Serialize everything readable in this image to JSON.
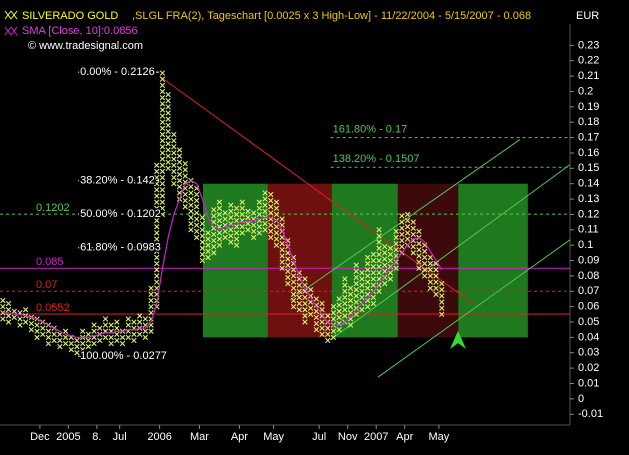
{
  "chart_data": {
    "type": "pointfigure",
    "title": "SILVERADO GOLD",
    "subtitle": ",SLGL FRA(2), Tageschart [0.0025 x 3 High-Low] - 11/22/2004 - 5/15/2007 - 0.068",
    "indicator_label": "SMA [Close, 10]:0.0856",
    "copyright": "© www.tradesignal.com",
    "y_axis_label": "EUR",
    "xlim": [
      0,
      100
    ],
    "ylim": [
      -0.017,
      0.24
    ],
    "xticks": [
      {
        "value": 7,
        "label": "Dec"
      },
      {
        "value": 12,
        "label": "2005"
      },
      {
        "value": 17,
        "label": "8."
      },
      {
        "value": 21,
        "label": "Jul"
      },
      {
        "value": 28,
        "label": "2006"
      },
      {
        "value": 35,
        "label": "Mar"
      },
      {
        "value": 42,
        "label": "Apr"
      },
      {
        "value": 48,
        "label": "May"
      },
      {
        "value": 56,
        "label": "Jul"
      },
      {
        "value": 61,
        "label": "Nov"
      },
      {
        "value": 66,
        "label": "2007"
      },
      {
        "value": 71,
        "label": "Apr"
      },
      {
        "value": 77,
        "label": "May"
      }
    ],
    "yticks": [
      0.23,
      0.22,
      0.21,
      0.2,
      0.19,
      0.18,
      0.17,
      0.16,
      0.15,
      0.14,
      0.13,
      0.12,
      0.11,
      0.1,
      0.09,
      0.08,
      0.07,
      0.06,
      0.05,
      0.04,
      0.03,
      0.02,
      0.01,
      0,
      -0.01
    ],
    "series": [
      {
        "name": "SILVERADO GOLD",
        "color": "#d8f070",
        "lows": [
          0.052,
          0.05,
          0.053,
          0.048,
          0.05,
          0.045,
          0.04,
          0.042,
          0.036,
          0.038,
          0.034,
          0.036,
          0.032,
          0.03,
          0.032,
          0.034,
          0.036,
          0.038,
          0.04,
          0.036,
          0.038,
          0.036,
          0.04,
          0.038,
          0.042,
          0.04,
          0.044,
          0.06,
          0.12,
          0.15,
          0.14,
          0.13,
          0.125,
          0.11,
          0.105,
          0.09,
          0.092,
          0.095,
          0.1,
          0.105,
          0.102,
          0.1,
          0.108,
          0.11,
          0.105,
          0.108,
          0.11,
          0.105,
          0.1,
          0.085,
          0.075,
          0.06,
          0.058,
          0.05,
          0.055,
          0.045,
          0.042,
          0.038,
          0.04,
          0.045,
          0.05,
          0.048,
          0.055,
          0.058,
          0.06,
          0.062,
          0.07,
          0.075,
          0.078,
          0.085,
          0.095,
          0.1,
          0.095,
          0.085,
          0.08,
          0.072,
          0.068,
          0.055
        ],
        "highs": [
          0.064,
          0.062,
          0.06,
          0.058,
          0.06,
          0.055,
          0.052,
          0.05,
          0.048,
          0.046,
          0.044,
          0.045,
          0.042,
          0.04,
          0.046,
          0.044,
          0.05,
          0.048,
          0.052,
          0.048,
          0.05,
          0.046,
          0.054,
          0.05,
          0.056,
          0.052,
          0.075,
          0.155,
          0.213,
          0.2,
          0.175,
          0.165,
          0.155,
          0.145,
          0.14,
          0.12,
          0.11,
          0.125,
          0.13,
          0.122,
          0.128,
          0.124,
          0.13,
          0.125,
          0.122,
          0.128,
          0.135,
          0.135,
          0.128,
          0.12,
          0.105,
          0.095,
          0.085,
          0.08,
          0.072,
          0.068,
          0.062,
          0.055,
          0.06,
          0.065,
          0.078,
          0.075,
          0.09,
          0.085,
          0.092,
          0.095,
          0.112,
          0.1,
          0.098,
          0.11,
          0.12,
          0.122,
          0.118,
          0.11,
          0.1,
          0.092,
          0.088,
          0.078
        ]
      },
      {
        "name": "SMA",
        "color": "#d020d0",
        "values": [
          0.056,
          0.056,
          0.055,
          0.055,
          0.054,
          0.053,
          0.052,
          0.05,
          0.048,
          0.046,
          0.044,
          0.042,
          0.041,
          0.04,
          0.04,
          0.04,
          0.041,
          0.042,
          0.043,
          0.043,
          0.044,
          0.044,
          0.045,
          0.045,
          0.046,
          0.046,
          0.05,
          0.062,
          0.085,
          0.105,
          0.12,
          0.13,
          0.14,
          0.142,
          0.14,
          0.13,
          0.118,
          0.112,
          0.11,
          0.112,
          0.113,
          0.114,
          0.115,
          0.116,
          0.116,
          0.117,
          0.118,
          0.118,
          0.116,
          0.11,
          0.1,
          0.09,
          0.08,
          0.072,
          0.066,
          0.06,
          0.055,
          0.05,
          0.048,
          0.048,
          0.05,
          0.054,
          0.058,
          0.062,
          0.066,
          0.07,
          0.075,
          0.08,
          0.085,
          0.09,
          0.095,
          0.1,
          0.104,
          0.105,
          0.102,
          0.096,
          0.09,
          0.084
        ]
      }
    ],
    "zones": [
      {
        "x0": 35.6,
        "x1": 47,
        "low": 0.04,
        "high": 0.14,
        "color": "#1f7a1f"
      },
      {
        "x0": 47,
        "x1": 58.2,
        "low": 0.04,
        "high": 0.14,
        "color": "#6e1010"
      },
      {
        "x0": 58.2,
        "x1": 69.8,
        "low": 0.04,
        "high": 0.14,
        "color": "#1f7a1f"
      },
      {
        "x0": 69.8,
        "x1": 80.4,
        "low": 0.04,
        "high": 0.14,
        "color": "#3c0a0a"
      },
      {
        "x0": 80.4,
        "x1": 92.6,
        "low": 0.04,
        "high": 0.14,
        "color": "#1f7a1f"
      }
    ],
    "levels": [
      {
        "value": 0.1202,
        "label": "0.1202",
        "color": "#50c850",
        "dash": true
      },
      {
        "value": 0.085,
        "label": "0.085",
        "color": "#d020d0",
        "dash": false
      },
      {
        "value": 0.07,
        "label": "0.07",
        "color": "#e02020",
        "dash": true
      },
      {
        "value": 0.0552,
        "label": "0.0552",
        "color": "#e02020",
        "dash": false
      }
    ],
    "fib_left": {
      "xrange": [
        13.7,
        28
      ],
      "color": "#ffffff",
      "levels": [
        {
          "value": 0.2126,
          "label": "0.00% - 0.2126"
        },
        {
          "value": 0.142,
          "label": "38.20% - 0.142"
        },
        {
          "value": 0.1202,
          "label": "50.00% - 0.1202"
        },
        {
          "value": 0.0983,
          "label": "61.80% - 0.0983"
        },
        {
          "value": 0.0277,
          "label": "100.00% - 0.0277"
        }
      ]
    },
    "fib_right": {
      "xrange": [
        58,
        100
      ],
      "color": "#50c850",
      "levels": [
        {
          "value": 0.17,
          "label": "161.80% - 0.17"
        },
        {
          "value": 0.1507,
          "label": "138.20% - 0.1507"
        }
      ]
    },
    "trend_lines": [
      {
        "x0": 28,
        "y0": 0.21,
        "x1": 83,
        "y1": 0.062,
        "color": "#e02020"
      },
      {
        "x0": 50.9,
        "y0": 0.0644,
        "x1": 91.2,
        "y1": 0.1687,
        "color": "#50c850"
      },
      {
        "x0": 57.9,
        "y0": 0.0383,
        "x1": 100,
        "y1": 0.1524,
        "color": "#50c850"
      },
      {
        "x0": 66.3,
        "y0": 0.0141,
        "x1": 100,
        "y1": 0.1035,
        "color": "#50c850"
      }
    ]
  }
}
